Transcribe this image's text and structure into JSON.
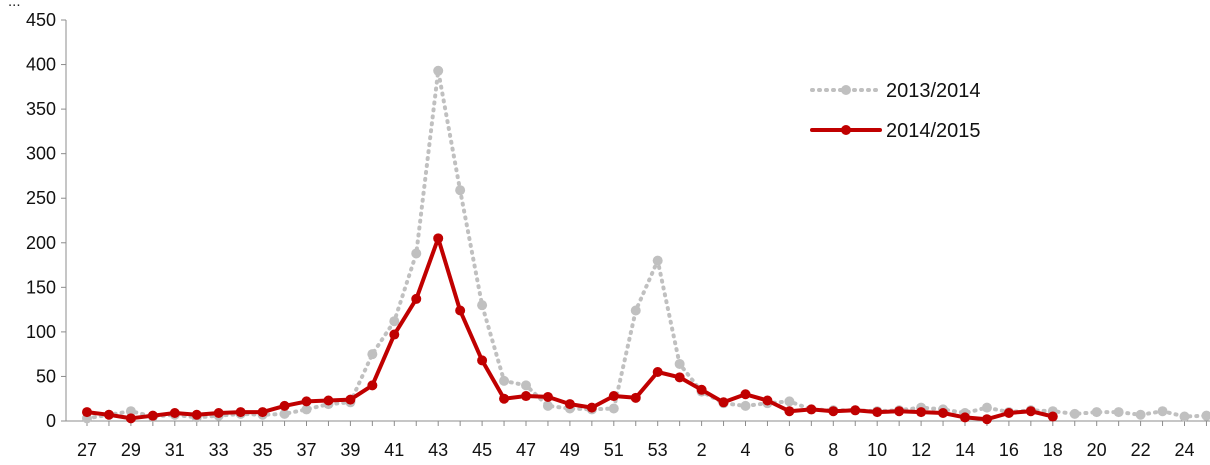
{
  "chart_data": {
    "type": "line",
    "title_fragment": "...",
    "xlabel": "",
    "ylabel": "",
    "ylim": [
      0,
      450
    ],
    "yticks": [
      0,
      50,
      100,
      150,
      200,
      250,
      300,
      350,
      400,
      450
    ],
    "x_tick_labels": [
      "27",
      "29",
      "31",
      "33",
      "35",
      "37",
      "39",
      "41",
      "43",
      "45",
      "47",
      "49",
      "51",
      "53",
      "2",
      "4",
      "6",
      "8",
      "10",
      "12",
      "14",
      "16",
      "18",
      "20",
      "22",
      "24"
    ],
    "grid": false,
    "legend": {
      "position": "top-right"
    },
    "series": [
      {
        "name": "2013/2014",
        "color": "#c0c0c0",
        "style": "dotted",
        "x": [
          "27",
          "28",
          "29",
          "30",
          "31",
          "32",
          "33",
          "34",
          "35",
          "36",
          "37",
          "38",
          "39",
          "40",
          "41",
          "42",
          "43",
          "44",
          "45",
          "46",
          "47",
          "48",
          "49",
          "50",
          "51",
          "52",
          "53",
          "1",
          "2",
          "3",
          "4",
          "5",
          "6",
          "7",
          "8",
          "9",
          "10",
          "11",
          "12",
          "13",
          "14",
          "15",
          "16",
          "17",
          "18",
          "19",
          "20",
          "21",
          "22",
          "23",
          "24",
          "25"
        ],
        "values": [
          3,
          7,
          11,
          5,
          7,
          4,
          6,
          8,
          7,
          8,
          13,
          19,
          21,
          75,
          112,
          188,
          393,
          259,
          130,
          45,
          40,
          17,
          14,
          13,
          14,
          124,
          180,
          64,
          33,
          20,
          17,
          20,
          22,
          13,
          12,
          12,
          11,
          12,
          15,
          13,
          9,
          15,
          10,
          12,
          11,
          8,
          10,
          10,
          7,
          11,
          5,
          6
        ]
      },
      {
        "name": "2014/2015",
        "color": "#c00000",
        "style": "solid",
        "x": [
          "27",
          "28",
          "29",
          "30",
          "31",
          "32",
          "33",
          "34",
          "35",
          "36",
          "37",
          "38",
          "39",
          "40",
          "41",
          "42",
          "43",
          "44",
          "45",
          "46",
          "47",
          "48",
          "49",
          "50",
          "51",
          "52",
          "53",
          "1",
          "2",
          "3",
          "4",
          "5",
          "6",
          "7",
          "8",
          "9",
          "10",
          "11",
          "12",
          "13",
          "14",
          "15",
          "16",
          "17",
          "18"
        ],
        "values": [
          10,
          7,
          3,
          6,
          9,
          7,
          9,
          10,
          10,
          17,
          22,
          23,
          24,
          40,
          97,
          137,
          205,
          124,
          68,
          25,
          28,
          27,
          19,
          15,
          28,
          26,
          55,
          49,
          35,
          21,
          30,
          23,
          11,
          13,
          11,
          12,
          10,
          11,
          10,
          9,
          4,
          2,
          9,
          11,
          5
        ]
      }
    ]
  }
}
